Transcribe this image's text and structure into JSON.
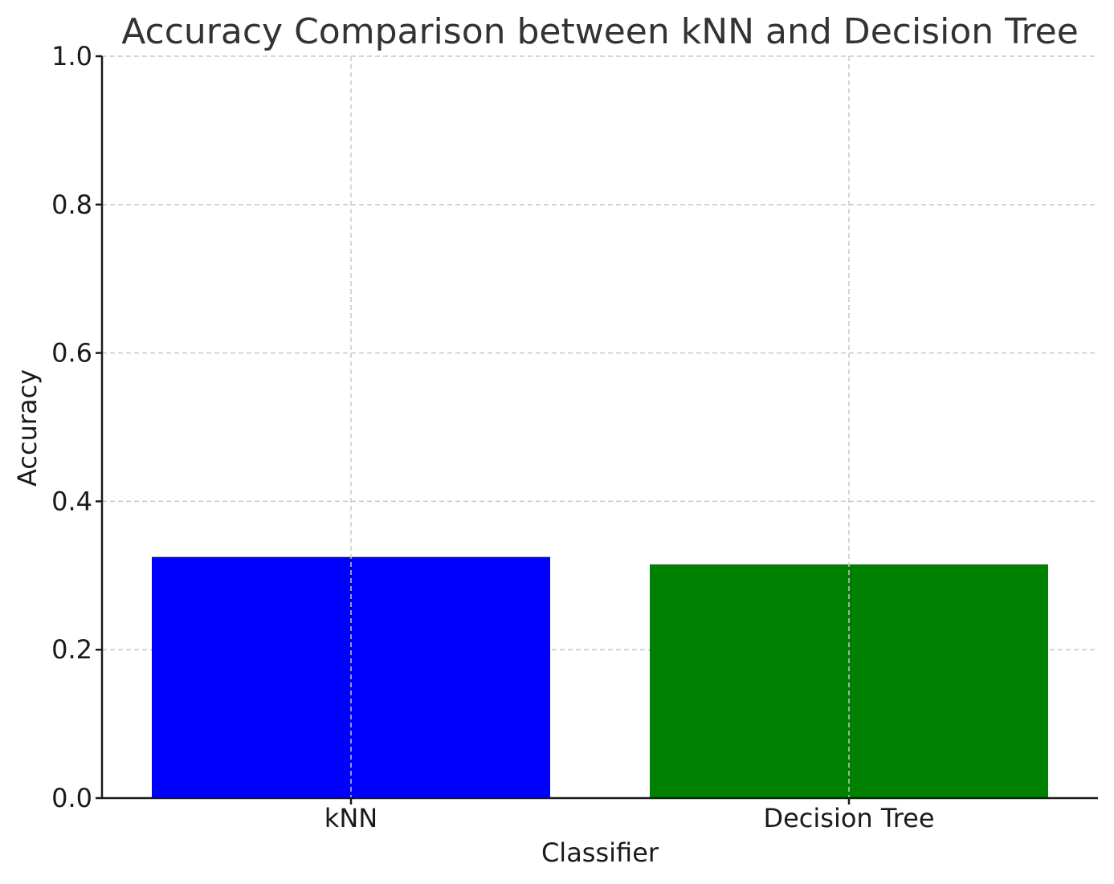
{
  "chart_data": {
    "type": "bar",
    "title": "Accuracy Comparison between kNN and Decision Tree",
    "xlabel": "Classifier",
    "ylabel": "Accuracy",
    "categories": [
      "kNN",
      "Decision Tree"
    ],
    "values": [
      0.325,
      0.315
    ],
    "colors": [
      "#0000ff",
      "#008000"
    ],
    "ylim": [
      0,
      1.0
    ],
    "yticks": [
      "0.0",
      "0.2",
      "0.4",
      "0.6",
      "0.8",
      "1.0"
    ],
    "ytick_values": [
      0,
      0.2,
      0.4,
      0.6,
      0.8,
      1.0
    ],
    "grid": true,
    "grid_color": "#c8c8c8"
  }
}
